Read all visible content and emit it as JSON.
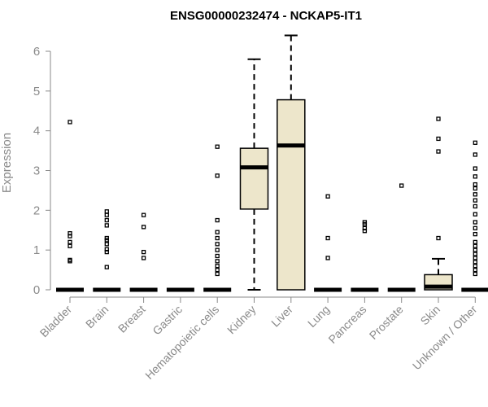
{
  "chart_data": {
    "type": "boxplot",
    "title": "ENSG00000232474 - NCKAP5-IT1",
    "ylabel": "Expression",
    "ylim": [
      0,
      6.5
    ],
    "yticks": [
      0,
      1,
      2,
      3,
      4,
      5,
      6
    ],
    "grid": false,
    "box_fill": "#ede6cb",
    "categories": [
      "Bladder",
      "Brain",
      "Breast",
      "Gastric",
      "Hematopoietic cells",
      "Kidney",
      "Liver",
      "Lung",
      "Pancreas",
      "Prostate",
      "Skin",
      "Unknown / Other"
    ],
    "boxes": [
      {
        "category": "Bladder",
        "min": 0,
        "q1": 0,
        "median": 0,
        "q3": 0,
        "max": 0,
        "outliers": [
          0.72,
          0.75,
          1.1,
          1.2,
          1.35,
          1.42,
          4.22
        ]
      },
      {
        "category": "Brain",
        "min": 0,
        "q1": 0,
        "median": 0,
        "q3": 0,
        "max": 0,
        "outliers": [
          0.57,
          0.95,
          1.02,
          1.15,
          1.25,
          1.3,
          1.62,
          1.75,
          1.88,
          1.97
        ]
      },
      {
        "category": "Breast",
        "min": 0,
        "q1": 0,
        "median": 0,
        "q3": 0,
        "max": 0,
        "outliers": [
          0.8,
          0.95,
          1.58,
          1.88
        ]
      },
      {
        "category": "Gastric",
        "min": 0,
        "q1": 0,
        "median": 0,
        "q3": 0,
        "max": 0,
        "outliers": []
      },
      {
        "category": "Hematopoietic cells",
        "min": 0,
        "q1": 0,
        "median": 0,
        "q3": 0,
        "max": 0,
        "outliers": [
          0.4,
          0.5,
          0.6,
          0.72,
          0.85,
          1.0,
          1.15,
          1.3,
          1.45,
          1.75,
          2.87,
          3.6
        ]
      },
      {
        "category": "Kidney",
        "min": 0,
        "q1": 2.03,
        "median": 3.08,
        "q3": 3.56,
        "max": 5.8,
        "outliers": []
      },
      {
        "category": "Liver",
        "min": 0,
        "q1": 0,
        "median": 3.63,
        "q3": 4.78,
        "max": 6.4,
        "outliers": []
      },
      {
        "category": "Lung",
        "min": 0,
        "q1": 0,
        "median": 0,
        "q3": 0,
        "max": 0,
        "outliers": [
          0.8,
          1.3,
          2.35
        ]
      },
      {
        "category": "Pancreas",
        "min": 0,
        "q1": 0,
        "median": 0,
        "q3": 0,
        "max": 0,
        "outliers": [
          1.48,
          1.55,
          1.65,
          1.7
        ]
      },
      {
        "category": "Prostate",
        "min": 0,
        "q1": 0,
        "median": 0,
        "q3": 0,
        "max": 0,
        "outliers": [
          2.62
        ]
      },
      {
        "category": "Skin",
        "min": 0,
        "q1": 0,
        "median": 0.08,
        "q3": 0.38,
        "max": 0.78,
        "outliers": [
          1.3,
          3.48,
          3.8,
          4.3
        ]
      },
      {
        "category": "Unknown / Other",
        "min": 0,
        "q1": 0,
        "median": 0,
        "q3": 0,
        "max": 0,
        "outliers": [
          0.4,
          0.5,
          0.6,
          0.7,
          0.8,
          0.9,
          1.0,
          1.1,
          1.2,
          1.4,
          1.55,
          1.7,
          1.9,
          2.1,
          2.25,
          2.4,
          2.55,
          2.65,
          2.85,
          3.05,
          3.4,
          3.7
        ]
      }
    ]
  }
}
